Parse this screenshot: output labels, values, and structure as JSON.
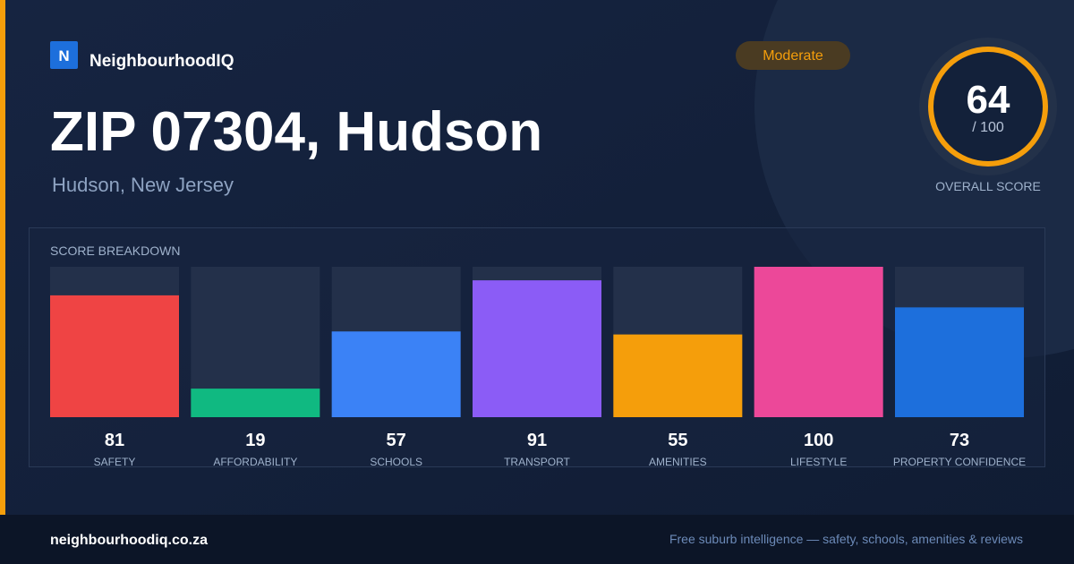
{
  "brand": {
    "logo": "N",
    "name": "NeighbourhoodIQ"
  },
  "header": {
    "title": "ZIP 07304, Hudson",
    "subtitle": "Hudson, New Jersey",
    "badge": "Moderate"
  },
  "score": {
    "value": 64,
    "out_of": {
      "value": 100,
      "label": "/ 100"
    },
    "label": "OVERALL SCORE"
  },
  "breakdown": {
    "title": "SCORE BREAKDOWN",
    "items": [
      {
        "name": "SAFETY",
        "value": 81,
        "color": "#ef4444"
      },
      {
        "name": "AFFORDABILITY",
        "value": 19,
        "color": "#10b981"
      },
      {
        "name": "SCHOOLS",
        "value": 57,
        "color": "#3b82f6"
      },
      {
        "name": "TRANSPORT",
        "value": 91,
        "color": "#8b5cf6"
      },
      {
        "name": "AMENITIES",
        "value": 55,
        "color": "#f59e0b"
      },
      {
        "name": "LIFESTYLE",
        "value": 100,
        "color": "#ec4899"
      },
      {
        "name": "PROPERTY CONFIDENCE",
        "value": 73,
        "color": "#1d6fdc"
      }
    ]
  },
  "footer": {
    "site": "neighbourhoodiq.co.za",
    "tagline": "Free suburb intelligence — safety, schools, amenities & reviews"
  }
}
